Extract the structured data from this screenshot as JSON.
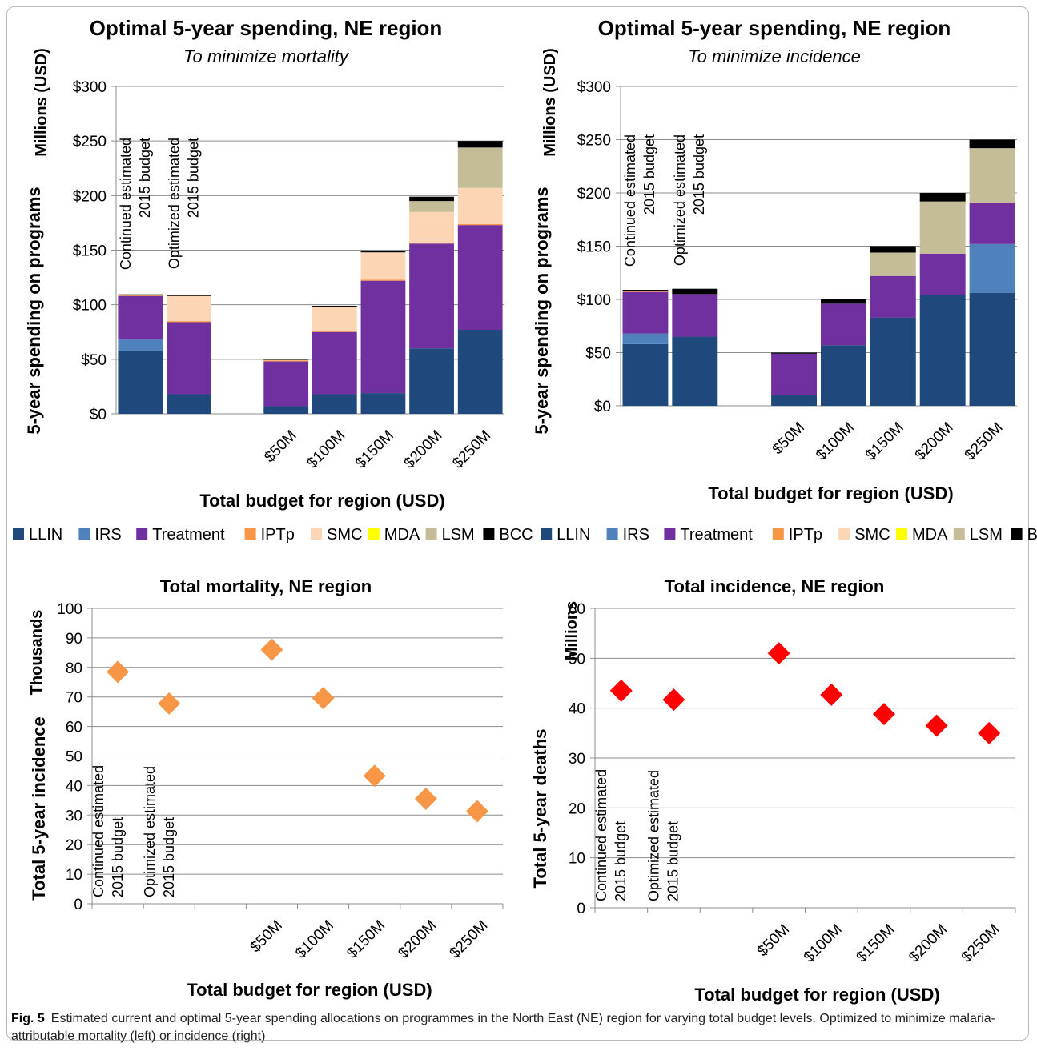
{
  "caption": {
    "label": "Fig. 5",
    "text": "Estimated current and optimal 5-year spending allocations on programmes in the North East (NE) region for varying total budget levels. Optimized to minimize malaria-attributable mortality (left) or incidence (right)"
  },
  "legend": {
    "entries": [
      {
        "name": "LLIN",
        "color": "#1f497d"
      },
      {
        "name": "IRS",
        "color": "#4f81bd"
      },
      {
        "name": "Treatment",
        "color": "#7030a0"
      },
      {
        "name": "IPTp",
        "color": "#f79646"
      },
      {
        "name": "SMC",
        "color": "#fcd5b5"
      },
      {
        "name": "MDA",
        "color": "#ffff00"
      },
      {
        "name": "LSM",
        "color": "#c4bd97"
      },
      {
        "name": "BCC",
        "color": "#000000"
      },
      {
        "name": "LLIN",
        "color": "#1f497d"
      },
      {
        "name": "IRS",
        "color": "#4f81bd"
      },
      {
        "name": "Treatment",
        "color": "#7030a0"
      },
      {
        "name": "IPTp",
        "color": "#f79646"
      },
      {
        "name": "SMC",
        "color": "#fcd5b5"
      },
      {
        "name": "MDA",
        "color": "#ffff00"
      },
      {
        "name": "LSM",
        "color": "#c4bd97"
      },
      {
        "name": "BCC",
        "color": "#000000"
      }
    ]
  },
  "chart_data": [
    {
      "type": "bar",
      "stacked": true,
      "title": "Optimal 5-year spending, NE region",
      "subtitle": "To minimize mortality",
      "xlabel": "Total budget for region (USD)",
      "ylabel": "5-year spending on programs",
      "yunit": "Millions (USD)",
      "ylim": [
        0,
        300
      ],
      "yticks": [
        "$0",
        "$50",
        "$100",
        "$150",
        "$200",
        "$250",
        "$300"
      ],
      "categories": [
        "Continued estimated 2015 budget",
        "Optimized estimated 2015 budget",
        "",
        "$50M",
        "$100M",
        "$150M",
        "$200M",
        "$250M"
      ],
      "vertical_labels": [
        "Continued estimated|2015 budget",
        "Optimized estimated|2015 budget"
      ],
      "series": [
        {
          "name": "LLIN",
          "color": "#1f497d",
          "values": [
            58,
            18,
            null,
            7,
            18,
            19,
            60,
            77
          ]
        },
        {
          "name": "IRS",
          "color": "#4f81bd",
          "values": [
            10,
            0,
            null,
            0,
            0,
            0,
            0,
            0
          ]
        },
        {
          "name": "Treatment",
          "color": "#7030a0",
          "values": [
            40,
            66,
            null,
            41,
            57,
            103,
            96,
            96
          ]
        },
        {
          "name": "IPTp",
          "color": "#f79646",
          "values": [
            0.5,
            1,
            null,
            1,
            1,
            1,
            1,
            1
          ]
        },
        {
          "name": "SMC",
          "color": "#fcd5b5",
          "values": [
            0,
            23,
            null,
            0.5,
            22,
            25,
            28,
            33
          ]
        },
        {
          "name": "MDA",
          "color": "#ffff00",
          "values": [
            0,
            0,
            null,
            0,
            0,
            0,
            0,
            0
          ]
        },
        {
          "name": "LSM",
          "color": "#c4bd97",
          "values": [
            0,
            0,
            null,
            0,
            0,
            0,
            10,
            37
          ]
        },
        {
          "name": "BCC",
          "color": "#000000",
          "values": [
            1,
            1,
            null,
            1,
            1,
            1,
            4,
            6
          ]
        }
      ]
    },
    {
      "type": "bar",
      "stacked": true,
      "title": "Optimal 5-year spending, NE region",
      "subtitle": "To minimize incidence",
      "xlabel": "Total budget for region (USD)",
      "ylabel": "5-year spending on programs",
      "yunit": "Millions (USD)",
      "ylim": [
        0,
        300
      ],
      "yticks": [
        "$0",
        "$50",
        "$100",
        "$150",
        "$200",
        "$250",
        "$300"
      ],
      "categories": [
        "Continued estimated 2015 budget",
        "Optimized estimated 2015 budget",
        "",
        "$50M",
        "$100M",
        "$150M",
        "$200M",
        "$250M"
      ],
      "vertical_labels": [
        "Continued estimated|2015 budget",
        "Optimized estimated|2015 budget"
      ],
      "series": [
        {
          "name": "LLIN",
          "color": "#1f497d",
          "values": [
            58,
            65,
            null,
            10,
            57,
            83,
            104,
            106
          ]
        },
        {
          "name": "IRS",
          "color": "#4f81bd",
          "values": [
            10,
            0,
            null,
            0,
            0,
            0,
            0,
            46
          ]
        },
        {
          "name": "Treatment",
          "color": "#7030a0",
          "values": [
            39,
            40,
            null,
            39,
            39,
            39,
            39,
            39
          ]
        },
        {
          "name": "IPTp",
          "color": "#f79646",
          "values": [
            1,
            0,
            null,
            0,
            0,
            0,
            0,
            0
          ]
        },
        {
          "name": "SMC",
          "color": "#fcd5b5",
          "values": [
            0,
            0,
            null,
            0,
            0,
            0,
            0,
            0
          ]
        },
        {
          "name": "MDA",
          "color": "#ffff00",
          "values": [
            0,
            0,
            null,
            0,
            0,
            0,
            0,
            0
          ]
        },
        {
          "name": "LSM",
          "color": "#c4bd97",
          "values": [
            0,
            0,
            null,
            0,
            0,
            22,
            49,
            51
          ]
        },
        {
          "name": "BCC",
          "color": "#000000",
          "values": [
            1,
            5,
            null,
            1,
            4,
            6,
            8,
            8
          ]
        }
      ]
    },
    {
      "type": "scatter",
      "title": "Total mortality, NE region",
      "xlabel": "Total budget for region (USD)",
      "ylabel": "Total 5-year incidence",
      "yunit": "Thousands",
      "ylim": [
        0,
        100
      ],
      "yticks": [
        "0",
        "10",
        "20",
        "30",
        "40",
        "50",
        "60",
        "70",
        "80",
        "90",
        "100"
      ],
      "categories": [
        "Continued estimated 2015 budget",
        "Optimized estimated 2015 budget",
        "",
        "$50M",
        "$100M",
        "$150M",
        "$200M",
        "$250M"
      ],
      "vertical_labels": [
        "Continued estimated|2015 budget",
        "Optimized estimated|2015 budget"
      ],
      "marker_color": "#f79646",
      "values": [
        78.5,
        67.8,
        null,
        86,
        69.6,
        43.3,
        35.5,
        31.3
      ]
    },
    {
      "type": "scatter",
      "title": "Total incidence, NE region",
      "xlabel": "Total budget for region (USD)",
      "ylabel": "Total 5-year deaths",
      "yunit": "Millions",
      "ylim": [
        0,
        60
      ],
      "yticks": [
        "0",
        "10",
        "20",
        "30",
        "40",
        "50",
        "60"
      ],
      "categories": [
        "Continued estimated 2015 budget",
        "Optimized estimated 2015 budget",
        "",
        "$50M",
        "$100M",
        "$150M",
        "$200M",
        "$250M"
      ],
      "vertical_labels": [
        "Continued estimated|2015 budget",
        "Optimized estimated|2015 budget"
      ],
      "marker_color": "#ff0000",
      "values": [
        43.5,
        41.7,
        null,
        51,
        42.7,
        38.8,
        36.5,
        35
      ]
    }
  ]
}
